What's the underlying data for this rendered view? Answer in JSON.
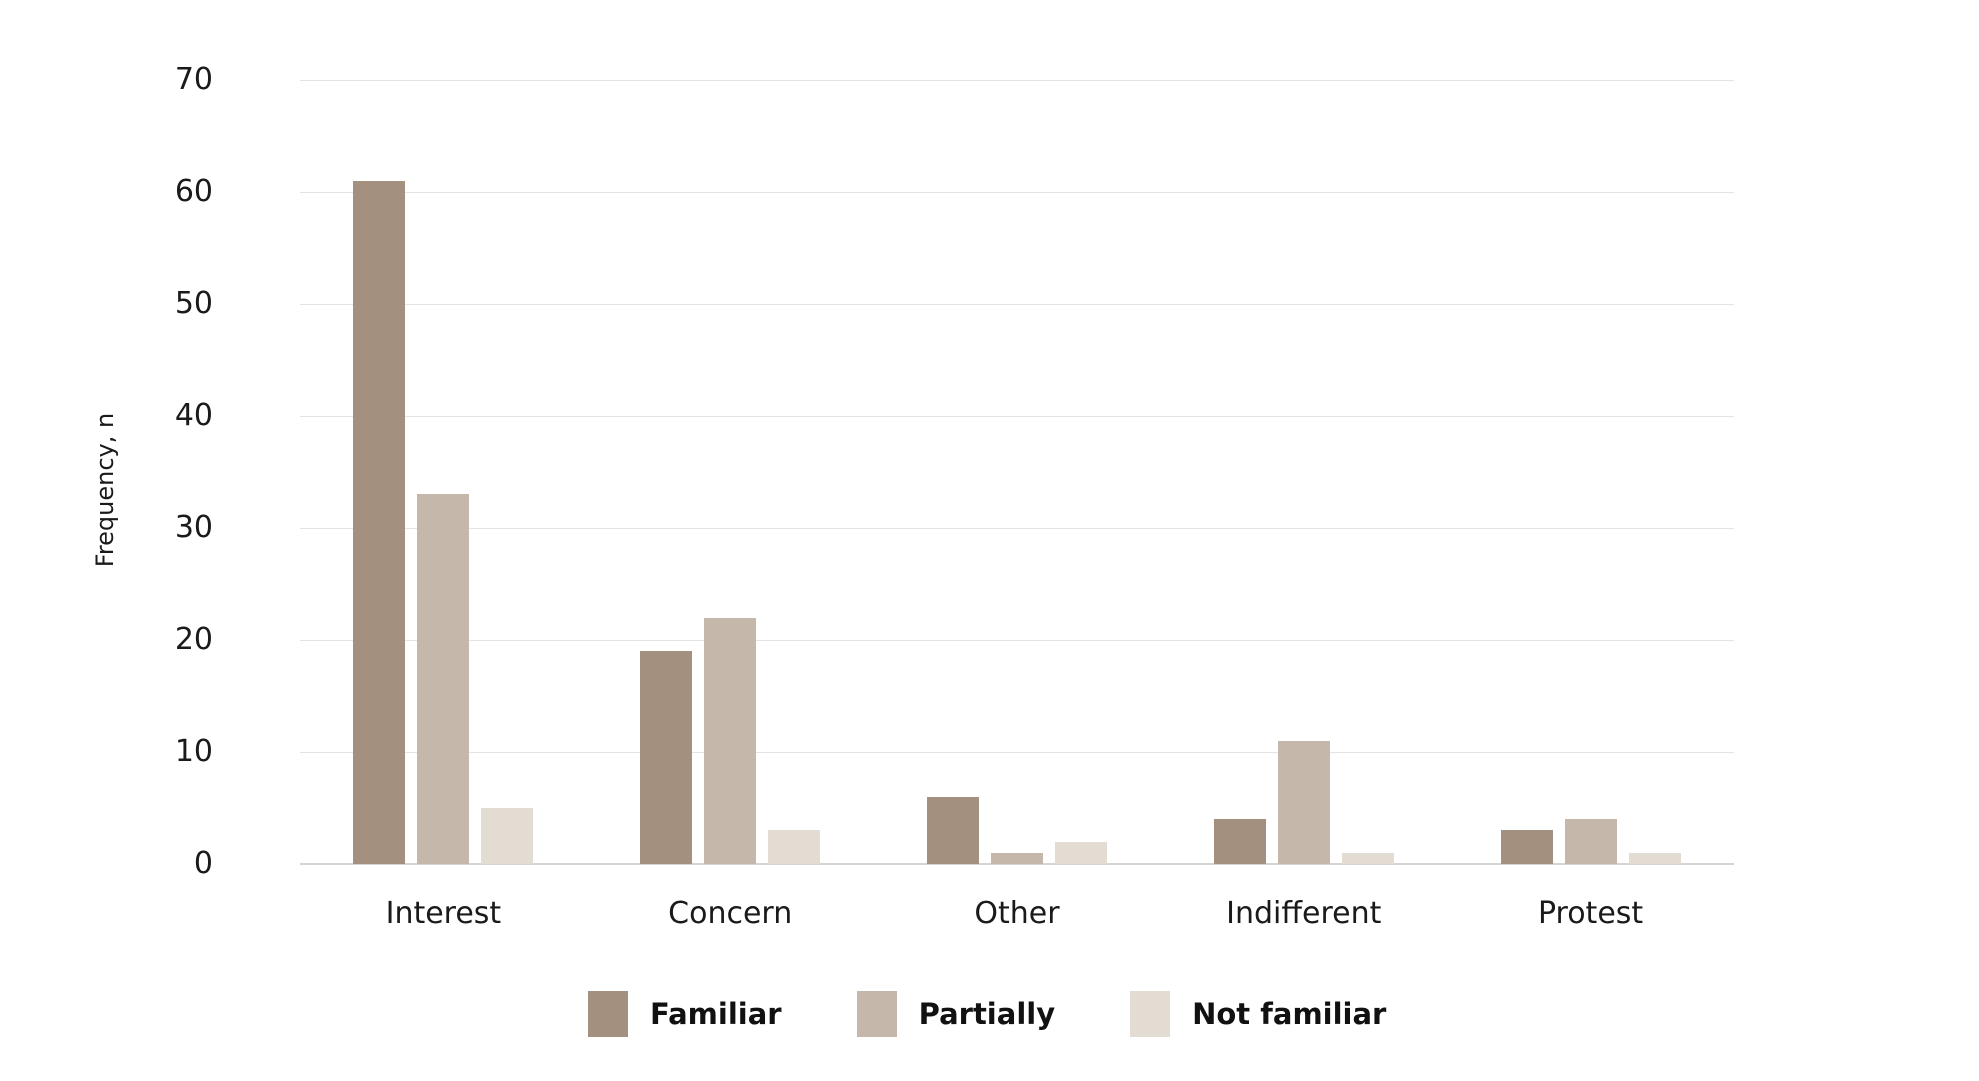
{
  "chart_data": {
    "type": "bar",
    "title": "",
    "categories": [
      "Interest",
      "Concern",
      "Other",
      "Indifferent",
      "Protest"
    ],
    "series": [
      {
        "name": "Familiar",
        "color": "#a3907f",
        "values": [
          61,
          19,
          6,
          4,
          3
        ]
      },
      {
        "name": "Partially",
        "color": "#c5b7a9",
        "values": [
          33,
          22,
          1,
          11,
          4
        ]
      },
      {
        "name": "Not familiar",
        "color": "#e3dcd3",
        "values": [
          5,
          3,
          2,
          1,
          1
        ]
      }
    ],
    "xlabel": "",
    "ylabel": "Frequency, n",
    "ylim": [
      0,
      70
    ],
    "yticks": [
      0,
      10,
      20,
      30,
      40,
      50,
      60,
      70
    ],
    "grid": true,
    "legend_position": "bottom"
  },
  "colors": {
    "background": "#ffffff",
    "gridline": "#e4e4e4",
    "axis_line": "#d7d4d1",
    "text": "#1a1a1a"
  }
}
